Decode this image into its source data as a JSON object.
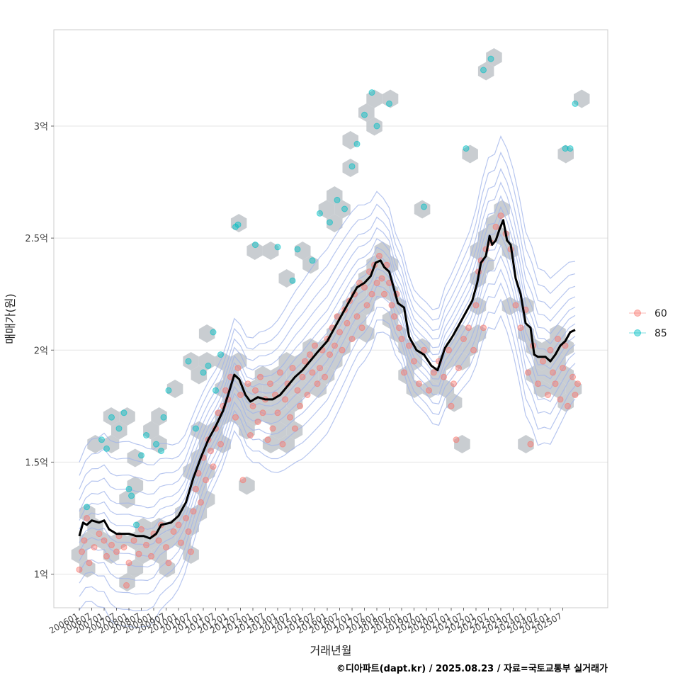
{
  "chart_data": {
    "type": "scatter",
    "title": "",
    "xlabel": "거래년월",
    "ylabel": "매매가(원)",
    "credit": "©디아파트(dapt.kr) / 2025.08.23 / 자료=국토교통부 실거래가",
    "x_range": [
      "2006-01",
      "2025-07"
    ],
    "y_range": [
      0.85,
      3.43
    ],
    "y_ticks": [
      {
        "value": 1.0,
        "label": "1억"
      },
      {
        "value": 1.5,
        "label": "1.5억"
      },
      {
        "value": 2.0,
        "label": "2억"
      },
      {
        "value": 2.5,
        "label": "2.5억"
      },
      {
        "value": 3.0,
        "label": "3억"
      }
    ],
    "x_ticks": [
      "200601",
      "200607",
      "200701",
      "200707",
      "200801",
      "200807",
      "200901",
      "200907",
      "201001",
      "201007",
      "201101",
      "201107",
      "201201",
      "201207",
      "201301",
      "201307",
      "201401",
      "201407",
      "201501",
      "201507",
      "201601",
      "201607",
      "201701",
      "201707",
      "201801",
      "201807",
      "201901",
      "201907",
      "202001",
      "202007",
      "202101",
      "202107",
      "202201",
      "202207",
      "202301",
      "202307",
      "202401",
      "202407",
      "202501",
      "202507"
    ],
    "legend": {
      "position": "right",
      "entries": [
        {
          "label": "60",
          "color": "#f8766d"
        },
        {
          "label": "85",
          "color": "#00bfc4"
        }
      ]
    },
    "grid": true,
    "colors": {
      "hexbin": "#bfc4c9",
      "contour": "#9fb3ea",
      "trend": "#000000"
    },
    "trend_line": {
      "name": "",
      "points": [
        [
          2006.0,
          1.17
        ],
        [
          2006.15,
          1.23
        ],
        [
          2006.3,
          1.22
        ],
        [
          2006.5,
          1.24
        ],
        [
          2006.8,
          1.23
        ],
        [
          2007.0,
          1.24
        ],
        [
          2007.2,
          1.2
        ],
        [
          2007.5,
          1.18
        ],
        [
          2007.8,
          1.18
        ],
        [
          2008.0,
          1.18
        ],
        [
          2008.3,
          1.17
        ],
        [
          2008.6,
          1.17
        ],
        [
          2008.85,
          1.16
        ],
        [
          2009.1,
          1.18
        ],
        [
          2009.3,
          1.22
        ],
        [
          2009.7,
          1.23
        ],
        [
          2010.0,
          1.26
        ],
        [
          2010.3,
          1.32
        ],
        [
          2010.6,
          1.43
        ],
        [
          2010.9,
          1.52
        ],
        [
          2011.2,
          1.6
        ],
        [
          2011.5,
          1.66
        ],
        [
          2011.8,
          1.73
        ],
        [
          2012.0,
          1.8
        ],
        [
          2012.25,
          1.89
        ],
        [
          2012.45,
          1.87
        ],
        [
          2012.7,
          1.8
        ],
        [
          2012.9,
          1.77
        ],
        [
          2013.2,
          1.79
        ],
        [
          2013.5,
          1.78
        ],
        [
          2013.8,
          1.78
        ],
        [
          2014.1,
          1.8
        ],
        [
          2014.4,
          1.84
        ],
        [
          2014.7,
          1.88
        ],
        [
          2015.0,
          1.91
        ],
        [
          2015.3,
          1.95
        ],
        [
          2015.6,
          1.99
        ],
        [
          2016.0,
          2.04
        ],
        [
          2016.3,
          2.1
        ],
        [
          2016.6,
          2.16
        ],
        [
          2016.9,
          2.22
        ],
        [
          2017.2,
          2.28
        ],
        [
          2017.5,
          2.3
        ],
        [
          2017.75,
          2.33
        ],
        [
          2017.95,
          2.39
        ],
        [
          2018.15,
          2.4
        ],
        [
          2018.3,
          2.37
        ],
        [
          2018.5,
          2.35
        ],
        [
          2018.65,
          2.29
        ],
        [
          2018.85,
          2.21
        ],
        [
          2019.1,
          2.19
        ],
        [
          2019.3,
          2.06
        ],
        [
          2019.6,
          2.0
        ],
        [
          2019.9,
          1.98
        ],
        [
          2020.2,
          1.93
        ],
        [
          2020.45,
          1.91
        ],
        [
          2020.6,
          1.96
        ],
        [
          2020.75,
          2.01
        ],
        [
          2021.05,
          2.06
        ],
        [
          2021.3,
          2.11
        ],
        [
          2021.6,
          2.17
        ],
        [
          2021.85,
          2.22
        ],
        [
          2022.05,
          2.3
        ],
        [
          2022.2,
          2.39
        ],
        [
          2022.4,
          2.42
        ],
        [
          2022.55,
          2.51
        ],
        [
          2022.65,
          2.47
        ],
        [
          2022.8,
          2.49
        ],
        [
          2022.95,
          2.54
        ],
        [
          2023.1,
          2.58
        ],
        [
          2023.25,
          2.49
        ],
        [
          2023.4,
          2.47
        ],
        [
          2023.6,
          2.32
        ],
        [
          2023.8,
          2.25
        ],
        [
          2024.0,
          2.12
        ],
        [
          2024.2,
          2.1
        ],
        [
          2024.35,
          1.98
        ],
        [
          2024.5,
          1.97
        ],
        [
          2024.8,
          1.97
        ],
        [
          2025.0,
          1.95
        ],
        [
          2025.2,
          1.98
        ],
        [
          2025.4,
          2.02
        ],
        [
          2025.6,
          2.04
        ],
        [
          2025.8,
          2.08
        ],
        [
          2026.0,
          2.09
        ]
      ]
    },
    "series": [
      {
        "name": "60",
        "points": [
          [
            2006.0,
            1.02
          ],
          [
            2006.1,
            1.1
          ],
          [
            2006.2,
            1.15
          ],
          [
            2006.3,
            1.25
          ],
          [
            2006.4,
            1.05
          ],
          [
            2006.6,
            1.12
          ],
          [
            2006.8,
            1.18
          ],
          [
            2007.0,
            1.15
          ],
          [
            2007.1,
            1.08
          ],
          [
            2007.3,
            1.13
          ],
          [
            2007.5,
            1.1
          ],
          [
            2007.6,
            1.17
          ],
          [
            2007.8,
            1.12
          ],
          [
            2007.9,
            0.95
          ],
          [
            2008.0,
            1.05
          ],
          [
            2008.2,
            1.15
          ],
          [
            2008.4,
            1.09
          ],
          [
            2008.5,
            1.2
          ],
          [
            2008.7,
            1.13
          ],
          [
            2008.9,
            1.08
          ],
          [
            2009.0,
            1.18
          ],
          [
            2009.2,
            1.15
          ],
          [
            2009.3,
            1.22
          ],
          [
            2009.5,
            1.12
          ],
          [
            2009.6,
            1.05
          ],
          [
            2009.8,
            1.19
          ],
          [
            2010.0,
            1.22
          ],
          [
            2010.1,
            1.14
          ],
          [
            2010.3,
            1.25
          ],
          [
            2010.4,
            1.19
          ],
          [
            2010.5,
            1.1
          ],
          [
            2010.6,
            1.28
          ],
          [
            2010.7,
            1.38
          ],
          [
            2010.8,
            1.45
          ],
          [
            2010.9,
            1.32
          ],
          [
            2011.0,
            1.52
          ],
          [
            2011.1,
            1.42
          ],
          [
            2011.2,
            1.6
          ],
          [
            2011.3,
            1.55
          ],
          [
            2011.4,
            1.48
          ],
          [
            2011.5,
            1.65
          ],
          [
            2011.6,
            1.72
          ],
          [
            2011.7,
            1.58
          ],
          [
            2011.8,
            1.75
          ],
          [
            2011.9,
            1.82
          ],
          [
            2012.0,
            1.78
          ],
          [
            2012.1,
            1.88
          ],
          [
            2012.3,
            1.7
          ],
          [
            2012.4,
            1.92
          ],
          [
            2012.5,
            1.8
          ],
          [
            2012.6,
            1.42
          ],
          [
            2012.8,
            1.85
          ],
          [
            2012.9,
            1.62
          ],
          [
            2013.0,
            1.75
          ],
          [
            2013.1,
            1.82
          ],
          [
            2013.2,
            1.68
          ],
          [
            2013.3,
            1.88
          ],
          [
            2013.4,
            1.72
          ],
          [
            2013.5,
            1.78
          ],
          [
            2013.6,
            1.6
          ],
          [
            2013.7,
            1.85
          ],
          [
            2013.8,
            1.65
          ],
          [
            2013.9,
            1.8
          ],
          [
            2014.0,
            1.72
          ],
          [
            2014.1,
            1.9
          ],
          [
            2014.2,
            1.58
          ],
          [
            2014.3,
            1.78
          ],
          [
            2014.4,
            1.85
          ],
          [
            2014.5,
            1.7
          ],
          [
            2014.6,
            1.92
          ],
          [
            2014.7,
            1.65
          ],
          [
            2014.8,
            1.82
          ],
          [
            2014.9,
            1.75
          ],
          [
            2015.0,
            1.88
          ],
          [
            2015.1,
            1.95
          ],
          [
            2015.2,
            1.8
          ],
          [
            2015.3,
            1.98
          ],
          [
            2015.4,
            1.9
          ],
          [
            2015.5,
            2.02
          ],
          [
            2015.6,
            1.85
          ],
          [
            2015.7,
            1.92
          ],
          [
            2015.8,
            2.0
          ],
          [
            2015.9,
            1.88
          ],
          [
            2016.0,
            2.05
          ],
          [
            2016.1,
            1.98
          ],
          [
            2016.2,
            2.1
          ],
          [
            2016.3,
            2.02
          ],
          [
            2016.4,
            2.15
          ],
          [
            2016.5,
            2.08
          ],
          [
            2016.6,
            2.0
          ],
          [
            2016.7,
            2.18
          ],
          [
            2016.8,
            2.12
          ],
          [
            2016.9,
            2.22
          ],
          [
            2017.0,
            2.05
          ],
          [
            2017.1,
            2.25
          ],
          [
            2017.2,
            2.15
          ],
          [
            2017.3,
            2.3
          ],
          [
            2017.4,
            2.1
          ],
          [
            2017.5,
            2.28
          ],
          [
            2017.6,
            2.2
          ],
          [
            2017.7,
            2.35
          ],
          [
            2017.8,
            2.25
          ],
          [
            2017.9,
            2.38
          ],
          [
            2018.0,
            2.3
          ],
          [
            2018.1,
            2.42
          ],
          [
            2018.2,
            2.32
          ],
          [
            2018.3,
            2.25
          ],
          [
            2018.4,
            2.38
          ],
          [
            2018.5,
            2.3
          ],
          [
            2018.6,
            2.2
          ],
          [
            2018.7,
            2.15
          ],
          [
            2018.8,
            2.25
          ],
          [
            2018.9,
            2.1
          ],
          [
            2019.0,
            2.05
          ],
          [
            2019.1,
            1.9
          ],
          [
            2019.3,
            2.02
          ],
          [
            2019.5,
            1.95
          ],
          [
            2019.7,
            1.85
          ],
          [
            2019.9,
            2.0
          ],
          [
            2020.1,
            1.82
          ],
          [
            2020.3,
            1.9
          ],
          [
            2020.5,
            1.95
          ],
          [
            2020.7,
            1.88
          ],
          [
            2020.9,
            2.0
          ],
          [
            2021.0,
            1.75
          ],
          [
            2021.1,
            1.85
          ],
          [
            2021.2,
            1.6
          ],
          [
            2021.3,
            1.92
          ],
          [
            2021.5,
            2.05
          ],
          [
            2021.7,
            2.1
          ],
          [
            2021.9,
            2.0
          ],
          [
            2022.0,
            2.2
          ],
          [
            2022.1,
            2.35
          ],
          [
            2022.2,
            2.4
          ],
          [
            2022.3,
            2.1
          ],
          [
            2022.4,
            2.45
          ],
          [
            2022.6,
            2.48
          ],
          [
            2022.8,
            2.55
          ],
          [
            2023.0,
            2.6
          ],
          [
            2023.2,
            2.52
          ],
          [
            2023.4,
            2.45
          ],
          [
            2023.6,
            2.2
          ],
          [
            2023.8,
            2.1
          ],
          [
            2024.0,
            2.18
          ],
          [
            2024.1,
            1.9
          ],
          [
            2024.2,
            1.58
          ],
          [
            2024.3,
            2.02
          ],
          [
            2024.5,
            1.85
          ],
          [
            2024.7,
            1.95
          ],
          [
            2024.9,
            1.8
          ],
          [
            2025.0,
            2.0
          ],
          [
            2025.1,
            1.9
          ],
          [
            2025.2,
            1.85
          ],
          [
            2025.3,
            2.05
          ],
          [
            2025.4,
            1.78
          ],
          [
            2025.5,
            1.92
          ],
          [
            2025.6,
            2.02
          ],
          [
            2025.7,
            1.75
          ],
          [
            2025.9,
            1.88
          ],
          [
            2026.0,
            1.8
          ],
          [
            2026.1,
            1.85
          ]
        ]
      },
      {
        "name": "85",
        "points": [
          [
            2006.3,
            1.3
          ],
          [
            2006.9,
            1.6
          ],
          [
            2007.1,
            1.56
          ],
          [
            2007.3,
            1.7
          ],
          [
            2007.6,
            1.65
          ],
          [
            2007.8,
            1.72
          ],
          [
            2008.0,
            1.38
          ],
          [
            2008.1,
            1.35
          ],
          [
            2008.3,
            1.22
          ],
          [
            2008.5,
            1.53
          ],
          [
            2008.7,
            1.62
          ],
          [
            2009.1,
            1.58
          ],
          [
            2009.3,
            1.55
          ],
          [
            2009.4,
            1.7
          ],
          [
            2009.6,
            1.82
          ],
          [
            2010.4,
            1.95
          ],
          [
            2010.7,
            1.65
          ],
          [
            2011.0,
            1.9
          ],
          [
            2011.2,
            1.93
          ],
          [
            2011.4,
            2.08
          ],
          [
            2011.5,
            1.82
          ],
          [
            2011.7,
            1.98
          ],
          [
            2012.3,
            2.55
          ],
          [
            2012.4,
            2.56
          ],
          [
            2013.1,
            2.47
          ],
          [
            2014.0,
            2.46
          ],
          [
            2014.6,
            2.31
          ],
          [
            2014.8,
            2.45
          ],
          [
            2015.4,
            2.4
          ],
          [
            2015.7,
            2.61
          ],
          [
            2016.1,
            2.57
          ],
          [
            2016.4,
            2.67
          ],
          [
            2016.7,
            2.63
          ],
          [
            2017.0,
            2.82
          ],
          [
            2017.2,
            2.92
          ],
          [
            2017.5,
            3.05
          ],
          [
            2017.8,
            3.15
          ],
          [
            2018.0,
            3.0
          ],
          [
            2018.5,
            3.1
          ],
          [
            2019.9,
            2.64
          ],
          [
            2021.6,
            2.9
          ],
          [
            2022.3,
            3.25
          ],
          [
            2022.6,
            3.3
          ],
          [
            2025.6,
            2.9
          ],
          [
            2025.8,
            2.9
          ],
          [
            2026.0,
            3.1
          ]
        ]
      }
    ]
  }
}
